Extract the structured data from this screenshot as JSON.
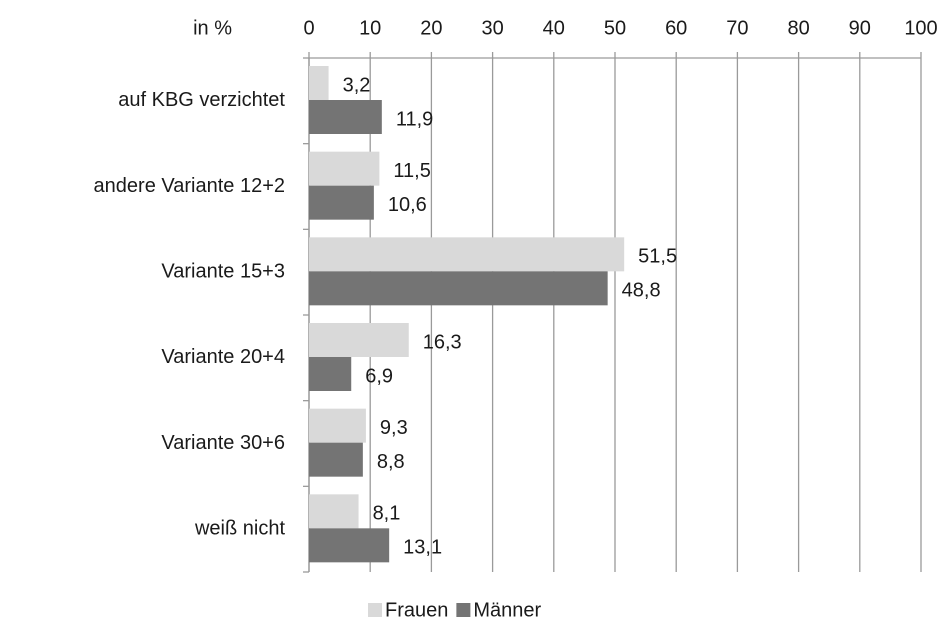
{
  "chart_data": {
    "type": "hbar",
    "x_label": "in %",
    "categories": [
      "auf KBG verzichtet",
      "andere Variante 12+2",
      "Variante 15+3",
      "Variante 20+4",
      "Variante 30+6",
      "weiß nicht"
    ],
    "series": [
      {
        "name": "Frauen",
        "color": "#d9d9d9",
        "values": [
          3.2,
          11.5,
          51.5,
          16.3,
          9.3,
          8.1
        ],
        "value_labels": [
          "3,2",
          "11,5",
          "51,5",
          "16,3",
          "9,3",
          "8,1"
        ]
      },
      {
        "name": "Männer",
        "color": "#747474",
        "values": [
          11.9,
          10.6,
          48.8,
          6.9,
          8.8,
          13.1
        ],
        "value_labels": [
          "11,9",
          "10,6",
          "48,8",
          "6,9",
          "8,8",
          "13,1"
        ]
      }
    ],
    "xlim": [
      0,
      100
    ],
    "xticks": [
      0,
      10,
      20,
      30,
      40,
      50,
      60,
      70,
      80,
      90,
      100
    ],
    "grid": true,
    "legend": "bottom"
  }
}
